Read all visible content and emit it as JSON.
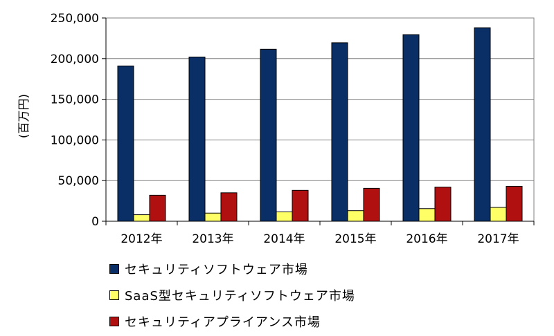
{
  "chart_data": {
    "type": "bar",
    "categories": [
      "2012年",
      "2013年",
      "2014年",
      "2015年",
      "2016年",
      "2017年"
    ],
    "series": [
      {
        "name": "セキュリティソフトウェア市場",
        "color": "#0A2F66",
        "values": [
          191000,
          202000,
          211500,
          219500,
          229500,
          238000
        ]
      },
      {
        "name": "SaaS型セキュリティソフトウェア市場",
        "color": "#FFFF66",
        "values": [
          8000,
          10000,
          11500,
          13000,
          15500,
          17000
        ]
      },
      {
        "name": "セキュリティアプライアンス市場",
        "color": "#B01010",
        "values": [
          32000,
          35000,
          38000,
          40500,
          42000,
          43000
        ]
      }
    ],
    "ylabel": "(百万円)",
    "ylim": [
      0,
      250000
    ],
    "yticks": [
      "0",
      "50,000",
      "100,000",
      "150,000",
      "200,000",
      "250,000"
    ],
    "grid": true,
    "legend_position": "bottom"
  }
}
